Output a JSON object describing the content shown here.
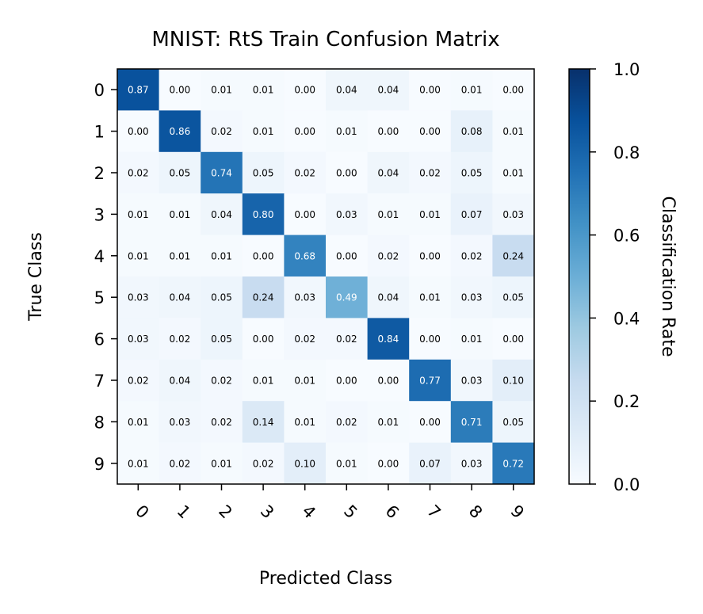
{
  "chart_data": {
    "type": "heatmap",
    "title": "MNIST: RtS Train Confusion Matrix",
    "xlabel": "Predicted Class",
    "ylabel": "True Class",
    "x_categories": [
      "0",
      "1",
      "2",
      "3",
      "4",
      "5",
      "6",
      "7",
      "8",
      "9"
    ],
    "y_categories": [
      "0",
      "1",
      "2",
      "3",
      "4",
      "5",
      "6",
      "7",
      "8",
      "9"
    ],
    "values": [
      [
        0.87,
        0.0,
        0.01,
        0.01,
        0.0,
        0.04,
        0.04,
        0.0,
        0.01,
        0.0
      ],
      [
        0.0,
        0.86,
        0.02,
        0.01,
        0.0,
        0.01,
        0.0,
        0.0,
        0.08,
        0.01
      ],
      [
        0.02,
        0.05,
        0.74,
        0.05,
        0.02,
        0.0,
        0.04,
        0.02,
        0.05,
        0.01
      ],
      [
        0.01,
        0.01,
        0.04,
        0.8,
        0.0,
        0.03,
        0.01,
        0.01,
        0.07,
        0.03
      ],
      [
        0.01,
        0.01,
        0.01,
        0.0,
        0.68,
        0.0,
        0.02,
        0.0,
        0.02,
        0.24
      ],
      [
        0.03,
        0.04,
        0.05,
        0.24,
        0.03,
        0.49,
        0.04,
        0.01,
        0.03,
        0.05
      ],
      [
        0.03,
        0.02,
        0.05,
        0.0,
        0.02,
        0.02,
        0.84,
        0.0,
        0.01,
        0.0
      ],
      [
        0.02,
        0.04,
        0.02,
        0.01,
        0.01,
        0.0,
        0.0,
        0.77,
        0.03,
        0.1
      ],
      [
        0.01,
        0.03,
        0.02,
        0.14,
        0.01,
        0.02,
        0.01,
        0.0,
        0.71,
        0.05
      ],
      [
        0.01,
        0.02,
        0.01,
        0.02,
        0.1,
        0.01,
        0.0,
        0.07,
        0.03,
        0.72
      ]
    ],
    "value_range": [
      0.0,
      1.0
    ],
    "colormap": "Blues",
    "colorbar": {
      "label": "Classification Rate",
      "ticks": [
        0.0,
        0.2,
        0.4,
        0.6,
        0.8,
        1.0
      ],
      "tick_labels": [
        "0.0",
        "0.2",
        "0.4",
        "0.6",
        "0.8",
        "1.0"
      ]
    },
    "x_tick_rotation": "45 degrees",
    "grid": false
  }
}
